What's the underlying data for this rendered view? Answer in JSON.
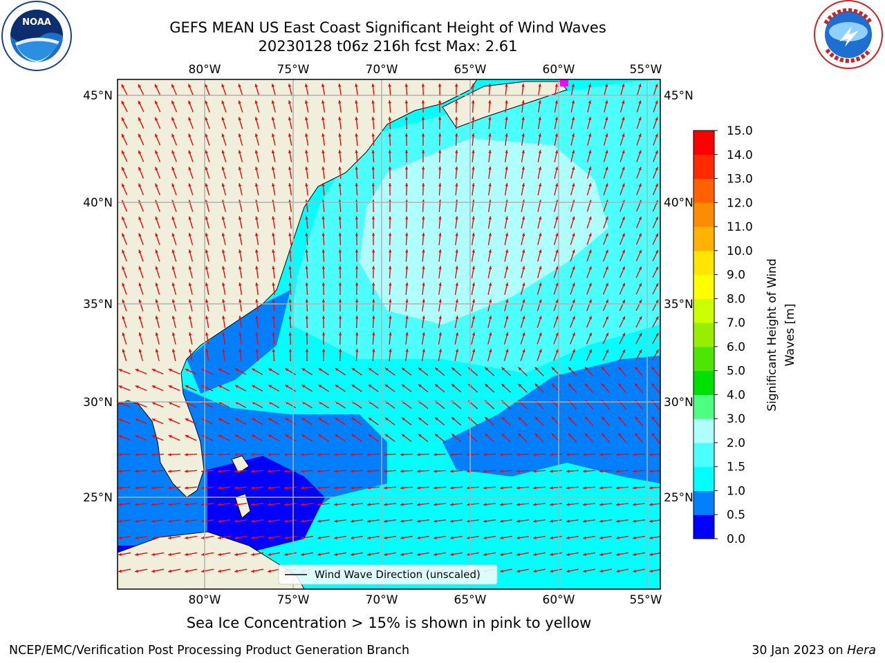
{
  "title": {
    "line1": "GEFS MEAN US East Coast Significant Height of Wind Waves",
    "line2": "20230128 t06z 216h fcst   Max: 2.61"
  },
  "map": {
    "lon_ticks": [
      "80°W",
      "75°W",
      "70°W",
      "65°W",
      "60°W",
      "55°W"
    ],
    "lat_ticks": [
      "45°N",
      "40°N",
      "35°N",
      "30°N",
      "25°N"
    ],
    "legend_label": "Wind Wave Direction (unscaled)",
    "colors": {
      "land": "#efefdc",
      "grid": "#b0b0b0",
      "arrow": "#ff0000",
      "ice": "#ff00ff"
    }
  },
  "colorbar": {
    "label": "Significant Height of Wind Waves [m]",
    "label_line1": "Significant Height of Wind",
    "label_line2": "Waves [m]",
    "ticks": [
      "0.0",
      "0.5",
      "1.0",
      "1.5",
      "2.0",
      "3.0",
      "4.0",
      "5.0",
      "6.0",
      "7.0",
      "8.0",
      "9.0",
      "10.0",
      "11.0",
      "12.0",
      "13.0",
      "14.0",
      "15.0"
    ],
    "colors": [
      "#0000ff",
      "#0080ff",
      "#00ffff",
      "#4cffff",
      "#b0ffff",
      "#4dff80",
      "#00e000",
      "#4ce600",
      "#99ee00",
      "#ccff00",
      "#ffff00",
      "#ffe600",
      "#ffb300",
      "#ff8c00",
      "#ff6000",
      "#ff2a00",
      "#ff0000"
    ]
  },
  "footer": {
    "note": "Sea Ice Concentration > 15% is shown in pink to yellow",
    "credit_left": "NCEP/EMC/Verification Post Processing Product Generation Branch",
    "date": "30 Jan 2023 on ",
    "machine": "Hera"
  },
  "logos": {
    "noaa_icon": "noaa-logo-icon",
    "nws_icon": "nws-logo-icon",
    "noaa_text": "NOAA"
  }
}
